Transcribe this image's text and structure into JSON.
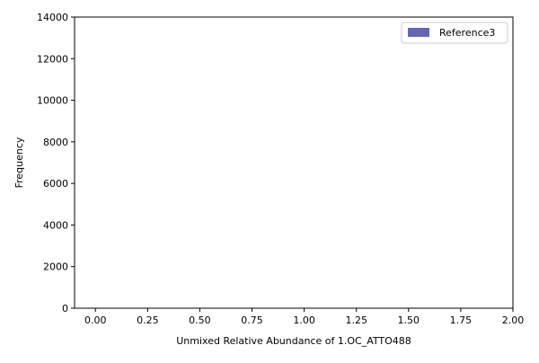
{
  "chart_data": {
    "type": "bar",
    "title": "",
    "xlabel": "Unmixed Relative Abundance of 1.OC_ATTO488",
    "ylabel": "Frequency",
    "xlim": [
      -0.1,
      2.0
    ],
    "ylim": [
      0,
      14000
    ],
    "x_ticks": [
      0.0,
      0.25,
      0.5,
      0.75,
      1.0,
      1.25,
      1.5,
      1.75,
      2.0
    ],
    "x_tick_labels": [
      "0.00",
      "0.25",
      "0.50",
      "0.75",
      "1.00",
      "1.25",
      "1.50",
      "1.75",
      "2.00"
    ],
    "y_ticks": [
      0,
      2000,
      4000,
      6000,
      8000,
      10000,
      12000,
      14000
    ],
    "y_tick_labels": [
      "0",
      "2000",
      "4000",
      "6000",
      "8000",
      "10000",
      "12000",
      "14000"
    ],
    "legend_position": "top-right",
    "series": [
      {
        "name": "Reference3",
        "color": "#6666b3",
        "values": []
      }
    ]
  }
}
